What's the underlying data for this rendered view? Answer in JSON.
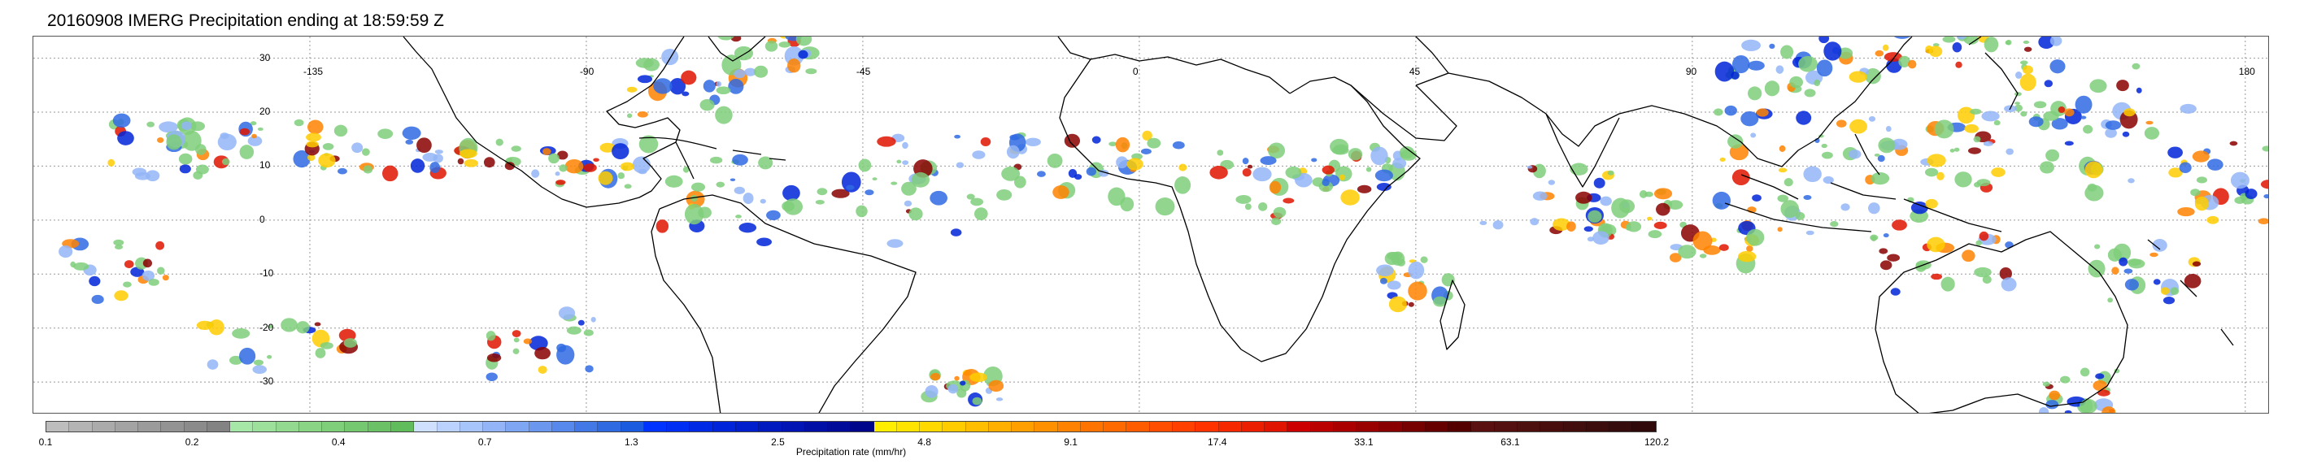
{
  "title": "20160908 IMERG Precipitation ending at 18:59:59 Z",
  "map": {
    "lon_labels": [
      "-135",
      "-90",
      "-45",
      "0",
      "45",
      "90",
      "180"
    ],
    "lat_labels": [
      "30",
      "20",
      "10",
      "0",
      "-10",
      "-20",
      "-30"
    ],
    "lon_values": [
      -135,
      -90,
      -45,
      0,
      45,
      90,
      180
    ],
    "lat_values": [
      30,
      20,
      10,
      0,
      -10,
      -20,
      -30
    ],
    "extent": {
      "lon_min": -180,
      "lon_max": 184,
      "lat_min": -36,
      "lat_max": 34
    },
    "gridline_style": "dotted",
    "background": "#ffffff",
    "coastline_color": "#000000"
  },
  "colorbar": {
    "label": "Precipitation rate (mm/hr)",
    "tick_labels": [
      "0.1",
      "0.2",
      "0.4",
      "0.7",
      "1.3",
      "2.5",
      "4.8",
      "9.1",
      "17.4",
      "33.1",
      "63.1",
      "120.2"
    ],
    "groups": [
      {
        "name": "gray",
        "colors": [
          "#bdbdbd",
          "#b4b4b4",
          "#ababab",
          "#a3a3a3",
          "#9b9b9b",
          "#939393",
          "#8b8b8b",
          "#838383"
        ]
      },
      {
        "name": "green",
        "colors": [
          "#a6e6a6",
          "#9de09b",
          "#93da90",
          "#89d485",
          "#7fce7a",
          "#75c870",
          "#6bc266",
          "#61bc5c"
        ]
      },
      {
        "name": "light-blue",
        "colors": [
          "#cfe0ff",
          "#bbd2ff",
          "#a7c4fb",
          "#93b5f7",
          "#7fa6f3",
          "#6b97ef",
          "#5788eb",
          "#4379e7",
          "#2f6ae3",
          "#1b5bdf"
        ]
      },
      {
        "name": "blue",
        "colors": [
          "#0033ff",
          "#002ef2",
          "#0029e6",
          "#0024d9",
          "#001fcc",
          "#001abf",
          "#0015b3",
          "#0010a6",
          "#000b99",
          "#00068c"
        ]
      },
      {
        "name": "yellow-orange",
        "colors": [
          "#ffee00",
          "#ffe400",
          "#ffd900",
          "#ffcc00",
          "#ffbf00",
          "#ffb000",
          "#ffa000",
          "#ff9100",
          "#ff8200",
          "#ff7300"
        ]
      },
      {
        "name": "orange-red",
        "colors": [
          "#ff6a00",
          "#ff5c00",
          "#ff4e00",
          "#ff4000",
          "#ff3300",
          "#f52800",
          "#eb1e00",
          "#e01400"
        ]
      },
      {
        "name": "red-dark",
        "colors": [
          "#cc0000",
          "#bb0000",
          "#aa0000",
          "#990000",
          "#880000",
          "#770000",
          "#660000",
          "#550000"
        ]
      },
      {
        "name": "dark-brown",
        "colors": [
          "#5a1010",
          "#541010",
          "#4e0f0f",
          "#480e0e",
          "#420d0d",
          "#3c0c0c",
          "#360b0b",
          "#300a0a"
        ]
      }
    ]
  }
}
